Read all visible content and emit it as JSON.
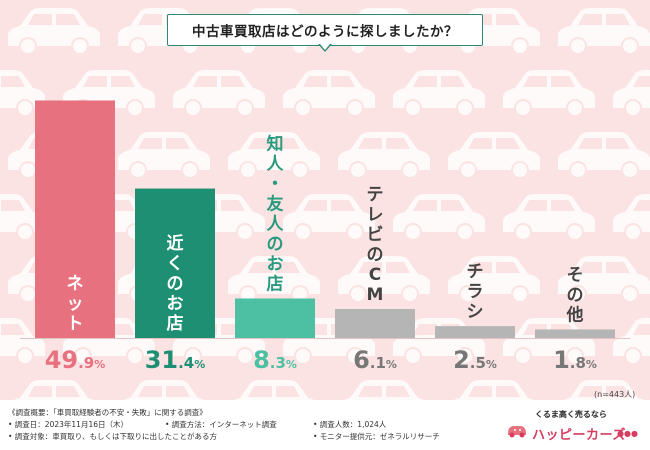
{
  "title": "中古車買取店はどのように探しましたか？",
  "n_note": "(n=443人)",
  "colors": {
    "background": "#fbe3e3",
    "car_pattern": "#ffffff",
    "title_border": "#2a8a72",
    "logo": "#d63d5f"
  },
  "chart_data": {
    "type": "bar",
    "categories": [
      "ネット",
      "近くのお店",
      "知人・友人のお店",
      "テレビのCM",
      "チラシ",
      "その他"
    ],
    "values": [
      49.9,
      31.4,
      8.3,
      6.1,
      2.5,
      1.8
    ],
    "value_labels": [
      {
        "int": "49",
        "dec": ".9",
        "pct": "%"
      },
      {
        "int": "31",
        "dec": ".4",
        "pct": "%"
      },
      {
        "int": "8",
        "dec": ".3",
        "pct": "%"
      },
      {
        "int": "6",
        "dec": ".1",
        "pct": "%"
      },
      {
        "int": "2",
        "dec": ".5",
        "pct": "%"
      },
      {
        "int": "1",
        "dec": ".8",
        "pct": "%"
      }
    ],
    "bar_colors": [
      "#e8717f",
      "#1f8f74",
      "#4dbfa2",
      "#b5b5b5",
      "#b5b5b5",
      "#b5b5b5"
    ],
    "label_colors": [
      "#e8717f",
      "#1f8f74",
      "#4dbfa2",
      "#777777",
      "#777777",
      "#777777"
    ],
    "category_label_colors": [
      "#ffffff",
      "#ffffff",
      "#2a9a7e",
      "#444444",
      "#444444",
      "#444444"
    ],
    "title": "中古車買取店はどのように探しましたか？",
    "ylim": [
      0,
      50
    ]
  },
  "footer": {
    "overview": "《調査概要：「車買取経験者の不安・失敗」に関する調査》",
    "date": "• 調査日：2023年11月16日（木）",
    "method": "• 調査方法：インターネット調査",
    "count": "• 調査人数：1,024人",
    "target": "• 調査対象：車買取り、もしくは下取りに出したことがある方",
    "provider": "• モニター提供元：ゼネラルリサーチ"
  },
  "logo": {
    "tagline": "くるま高く売るなら",
    "name": "ハッピーカーズ",
    "dots": "●●●",
    "icon": "car-logo-icon"
  }
}
